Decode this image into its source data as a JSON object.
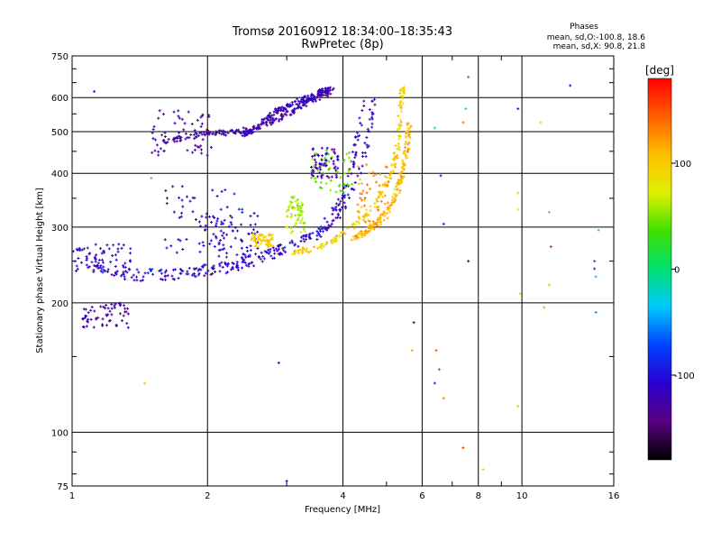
{
  "chart_data": {
    "type": "scatter",
    "title": "Tromsø 20160912 18:34:00–18:35:43",
    "subtitle": "RwPretec (8p)",
    "xlabel": "Frequency [MHz]",
    "ylabel": "Stationary phase Virtual Height [km]",
    "x_scale": "log",
    "y_scale": "log",
    "xlim": [
      1,
      16
    ],
    "ylim": [
      75,
      750
    ],
    "x_ticks": [
      {
        "value": 1,
        "label": "1"
      },
      {
        "value": 2,
        "label": "2"
      },
      {
        "value": 4,
        "label": "4"
      },
      {
        "value": 6,
        "label": "6"
      },
      {
        "value": 8,
        "label": "8"
      },
      {
        "value": 10,
        "label": "10"
      },
      {
        "value": 16,
        "label": "16"
      }
    ],
    "y_ticks": [
      {
        "value": 75,
        "label": "75"
      },
      {
        "value": 100,
        "label": "100"
      },
      {
        "value": 200,
        "label": "200"
      },
      {
        "value": 300,
        "label": "300"
      },
      {
        "value": 400,
        "label": "400"
      },
      {
        "value": 500,
        "label": "500"
      },
      {
        "value": 600,
        "label": "600"
      },
      {
        "value": 750,
        "label": "750"
      }
    ],
    "grid": true,
    "stats": {
      "heading": "Phases",
      "line_o": "mean, sd,O:-100.8, 18.6",
      "line_x": "mean, sd,X: 90.8, 21.8"
    },
    "colorbar": {
      "label": "[deg]",
      "range": [
        -180,
        180
      ],
      "ticks": [
        {
          "value": 100,
          "label": "100"
        },
        {
          "value": 0,
          "label": "0"
        },
        {
          "value": -100,
          "label": "-100"
        }
      ],
      "colors": [
        "#000000",
        "#5a0080",
        "#2a00d0",
        "#0040ff",
        "#00c8ff",
        "#00e070",
        "#40e000",
        "#e0f000",
        "#ffc000",
        "#ff6000",
        "#ff0000"
      ]
    },
    "traces": [
      {
        "phase": -115,
        "points": [
          [
            1.1,
            252
          ],
          [
            1.15,
            242
          ],
          [
            1.2,
            236
          ],
          [
            1.3,
            230
          ],
          [
            1.4,
            228
          ],
          [
            1.6,
            228
          ],
          [
            1.8,
            230
          ],
          [
            2.0,
            234
          ],
          [
            2.2,
            238
          ],
          [
            2.4,
            243
          ],
          [
            2.6,
            249
          ],
          [
            2.8,
            256
          ],
          [
            3.0,
            263
          ],
          [
            3.3,
            275
          ],
          [
            3.6,
            292
          ],
          [
            3.9,
            318
          ],
          [
            4.1,
            345
          ],
          [
            4.3,
            385
          ],
          [
            4.45,
            430
          ],
          [
            4.55,
            480
          ],
          [
            4.62,
            540
          ],
          [
            4.68,
            610
          ]
        ]
      },
      {
        "phase": -110,
        "points": [
          [
            1.25,
            240
          ],
          [
            1.4,
            236
          ],
          [
            1.6,
            236
          ],
          [
            1.8,
            238
          ],
          [
            2.0,
            242
          ],
          [
            2.2,
            246
          ],
          [
            2.4,
            252
          ],
          [
            2.6,
            258
          ],
          [
            2.8,
            265
          ],
          [
            3.0,
            272
          ],
          [
            3.3,
            285
          ],
          [
            3.6,
            302
          ],
          [
            3.8,
            325
          ],
          [
            4.0,
            355
          ],
          [
            4.15,
            400
          ],
          [
            4.25,
            450
          ],
          [
            4.35,
            510
          ],
          [
            4.45,
            590
          ]
        ]
      },
      {
        "phase": -125,
        "points": [
          [
            1.55,
            470
          ],
          [
            1.7,
            480
          ],
          [
            1.9,
            490
          ],
          [
            2.1,
            495
          ],
          [
            2.3,
            500
          ],
          [
            2.5,
            505
          ],
          [
            2.7,
            520
          ],
          [
            2.9,
            540
          ],
          [
            3.1,
            560
          ],
          [
            3.3,
            580
          ],
          [
            3.55,
            600
          ],
          [
            3.75,
            620
          ]
        ]
      },
      {
        "phase": -120,
        "points": [
          [
            2.4,
            490
          ],
          [
            2.6,
            515
          ],
          [
            2.8,
            550
          ],
          [
            3.0,
            575
          ],
          [
            3.2,
            590
          ],
          [
            3.4,
            600
          ],
          [
            3.6,
            618
          ],
          [
            3.8,
            632
          ]
        ]
      },
      {
        "phase": 95,
        "points": [
          [
            3.1,
            262
          ],
          [
            3.3,
            265
          ],
          [
            3.6,
            272
          ],
          [
            3.9,
            284
          ],
          [
            4.2,
            300
          ],
          [
            4.5,
            320
          ],
          [
            4.8,
            350
          ],
          [
            5.0,
            380
          ],
          [
            5.2,
            420
          ],
          [
            5.3,
            470
          ],
          [
            5.35,
            530
          ],
          [
            5.4,
            600
          ],
          [
            5.45,
            650
          ]
        ]
      },
      {
        "phase": 110,
        "points": [
          [
            4.2,
            282
          ],
          [
            4.5,
            292
          ],
          [
            4.8,
            310
          ],
          [
            5.1,
            335
          ],
          [
            5.3,
            370
          ],
          [
            5.45,
            410
          ],
          [
            5.55,
            460
          ],
          [
            5.6,
            520
          ]
        ]
      }
    ],
    "clusters": [
      {
        "phase": -118,
        "x": [
          1.6,
          2.3
        ],
        "y": [
          260,
          380
        ]
      },
      {
        "phase": -125,
        "x": [
          1.5,
          2.1
        ],
        "y": [
          440,
          560
        ]
      },
      {
        "phase": -130,
        "x": [
          1.05,
          1.35
        ],
        "y": [
          175,
          200
        ]
      },
      {
        "phase": -115,
        "x": [
          1.0,
          1.35
        ],
        "y": [
          235,
          275
        ]
      },
      {
        "phase": -105,
        "x": [
          2.0,
          2.6
        ],
        "y": [
          255,
          330
        ]
      },
      {
        "phase": 60,
        "x": [
          3.0,
          3.3
        ],
        "y": [
          290,
          360
        ]
      },
      {
        "phase": 45,
        "x": [
          3.4,
          4.2
        ],
        "y": [
          360,
          460
        ]
      },
      {
        "phase": -125,
        "x": [
          3.4,
          3.9
        ],
        "y": [
          390,
          460
        ]
      },
      {
        "phase": 120,
        "x": [
          4.3,
          5.1
        ],
        "y": [
          300,
          420
        ]
      },
      {
        "phase": 95,
        "x": [
          2.5,
          2.8
        ],
        "y": [
          270,
          290
        ]
      }
    ],
    "outliers": [
      [
        1.12,
        620,
        -95
      ],
      [
        1.5,
        390,
        130
      ],
      [
        1.45,
        130,
        110
      ],
      [
        2.88,
        145,
        -120
      ],
      [
        3.0,
        77,
        -100
      ],
      [
        5.75,
        180,
        -110
      ],
      [
        5.7,
        155,
        120
      ],
      [
        6.45,
        155,
        150
      ],
      [
        6.55,
        140,
        160
      ],
      [
        6.4,
        130,
        -90
      ],
      [
        6.7,
        120,
        130
      ],
      [
        6.6,
        395,
        -100
      ],
      [
        6.7,
        305,
        -90
      ],
      [
        6.4,
        510,
        10
      ],
      [
        7.4,
        525,
        140
      ],
      [
        7.6,
        670,
        160
      ],
      [
        7.5,
        565,
        -20
      ],
      [
        7.6,
        250,
        -110
      ],
      [
        7.4,
        92,
        160
      ],
      [
        8.2,
        82,
        100
      ],
      [
        9.8,
        565,
        -100
      ],
      [
        9.8,
        360,
        60
      ],
      [
        9.8,
        330,
        80
      ],
      [
        9.9,
        210,
        100
      ],
      [
        9.8,
        115,
        110
      ],
      [
        11.0,
        525,
        100
      ],
      [
        11.2,
        195,
        120
      ],
      [
        11.5,
        325,
        40
      ],
      [
        11.6,
        270,
        170
      ],
      [
        11.5,
        220,
        110
      ],
      [
        12.8,
        640,
        -100
      ],
      [
        14.5,
        250,
        -70
      ],
      [
        14.5,
        240,
        -80
      ],
      [
        14.6,
        230,
        -40
      ],
      [
        14.6,
        190,
        -50
      ],
      [
        14.8,
        295,
        20
      ]
    ]
  }
}
